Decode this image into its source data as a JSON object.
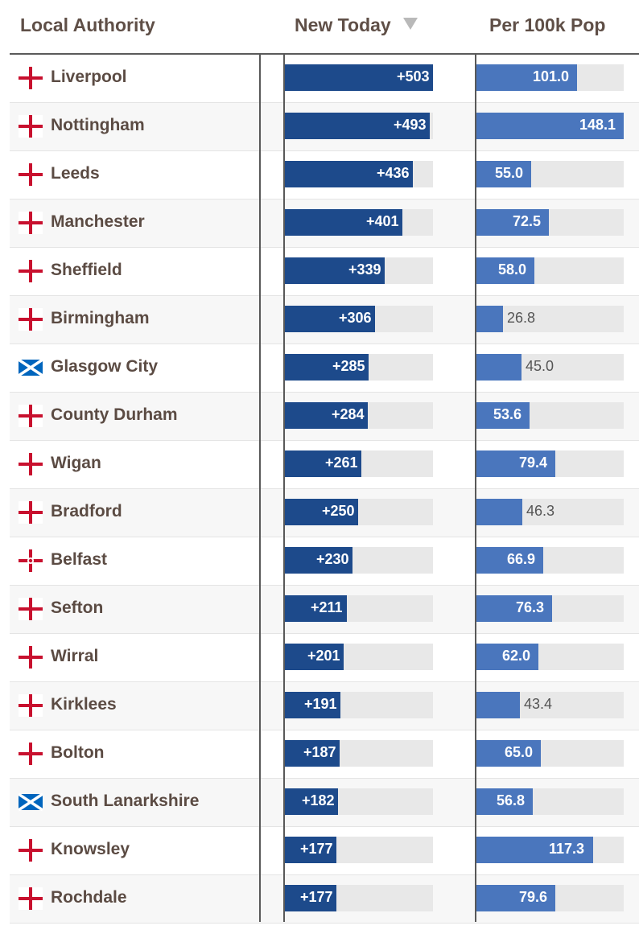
{
  "headers": {
    "local_authority": "Local Authority",
    "new_today": "New Today",
    "per_100k": "Per 100k Pop"
  },
  "chart_data": {
    "type": "table",
    "columns": [
      "Local Authority",
      "New Today",
      "Per 100k Pop"
    ],
    "sorted_by": "New Today",
    "sort_direction": "descending",
    "new_today_max": 503,
    "per_100k_max": 148.1,
    "rows": [
      {
        "name": "Liverpool",
        "flag": "england-flag",
        "new_today": 503,
        "new_today_label": "+503",
        "per_100k": 101.0,
        "per_100k_label": "101.0"
      },
      {
        "name": "Nottingham",
        "flag": "england-flag",
        "new_today": 493,
        "new_today_label": "+493",
        "per_100k": 148.1,
        "per_100k_label": "148.1"
      },
      {
        "name": "Leeds",
        "flag": "england-flag",
        "new_today": 436,
        "new_today_label": "+436",
        "per_100k": 55.0,
        "per_100k_label": "55.0"
      },
      {
        "name": "Manchester",
        "flag": "england-flag",
        "new_today": 401,
        "new_today_label": "+401",
        "per_100k": 72.5,
        "per_100k_label": "72.5"
      },
      {
        "name": "Sheffield",
        "flag": "england-flag",
        "new_today": 339,
        "new_today_label": "+339",
        "per_100k": 58.0,
        "per_100k_label": "58.0"
      },
      {
        "name": "Birmingham",
        "flag": "england-flag",
        "new_today": 306,
        "new_today_label": "+306",
        "per_100k": 26.8,
        "per_100k_label": "26.8"
      },
      {
        "name": "Glasgow City",
        "flag": "scotland-flag",
        "new_today": 285,
        "new_today_label": "+285",
        "per_100k": 45.0,
        "per_100k_label": "45.0"
      },
      {
        "name": "County Durham",
        "flag": "england-flag",
        "new_today": 284,
        "new_today_label": "+284",
        "per_100k": 53.6,
        "per_100k_label": "53.6"
      },
      {
        "name": "Wigan",
        "flag": "england-flag",
        "new_today": 261,
        "new_today_label": "+261",
        "per_100k": 79.4,
        "per_100k_label": "79.4"
      },
      {
        "name": "Bradford",
        "flag": "england-flag",
        "new_today": 250,
        "new_today_label": "+250",
        "per_100k": 46.3,
        "per_100k_label": "46.3"
      },
      {
        "name": "Belfast",
        "flag": "northern-ireland-flag",
        "new_today": 230,
        "new_today_label": "+230",
        "per_100k": 66.9,
        "per_100k_label": "66.9"
      },
      {
        "name": "Sefton",
        "flag": "england-flag",
        "new_today": 211,
        "new_today_label": "+211",
        "per_100k": 76.3,
        "per_100k_label": "76.3"
      },
      {
        "name": "Wirral",
        "flag": "england-flag",
        "new_today": 201,
        "new_today_label": "+201",
        "per_100k": 62.0,
        "per_100k_label": "62.0"
      },
      {
        "name": "Kirklees",
        "flag": "england-flag",
        "new_today": 191,
        "new_today_label": "+191",
        "per_100k": 43.4,
        "per_100k_label": "43.4"
      },
      {
        "name": "Bolton",
        "flag": "england-flag",
        "new_today": 187,
        "new_today_label": "+187",
        "per_100k": 65.0,
        "per_100k_label": "65.0"
      },
      {
        "name": "South Lanarkshire",
        "flag": "scotland-flag",
        "new_today": 182,
        "new_today_label": "+182",
        "per_100k": 56.8,
        "per_100k_label": "56.8"
      },
      {
        "name": "Knowsley",
        "flag": "england-flag",
        "new_today": 177,
        "new_today_label": "+177",
        "per_100k": 117.3,
        "per_100k_label": "117.3"
      },
      {
        "name": "Rochdale",
        "flag": "england-flag",
        "new_today": 177,
        "new_today_label": "+177",
        "per_100k": 79.6,
        "per_100k_label": "79.6"
      }
    ]
  },
  "colors": {
    "new_today_bar": "#1d4a8b",
    "per_100k_bar": "#4a76bd",
    "track": "#e8e8e8",
    "england_cross": "#c8102e",
    "scotland_blue": "#0065bd"
  }
}
